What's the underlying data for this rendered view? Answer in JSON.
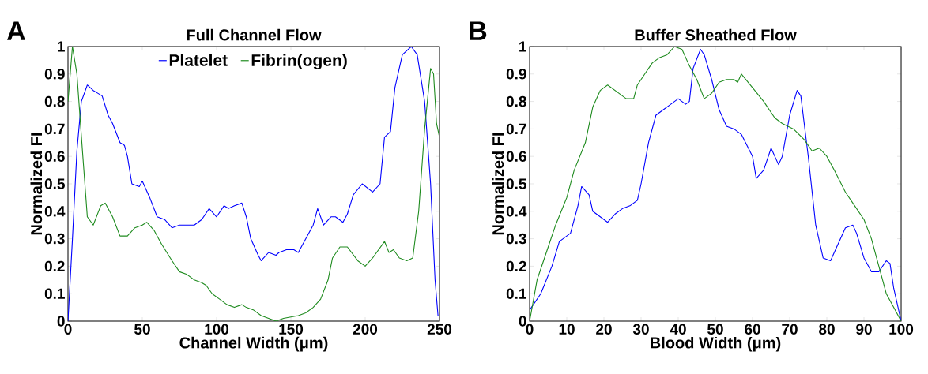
{
  "chart_data": [
    {
      "type": "line",
      "title": "Full Channel Flow",
      "xlabel": "Channel Width (μm)",
      "ylabel": "Normalized FI",
      "annotations": [
        "A"
      ],
      "xlim": [
        0,
        250
      ],
      "ylim": [
        0,
        1
      ],
      "xticks": [
        0,
        50,
        100,
        150,
        200,
        250
      ],
      "yticks": [
        0,
        0.1,
        0.2,
        0.3,
        0.4,
        0.5,
        0.6,
        0.7,
        0.8,
        0.9,
        1
      ],
      "legend": "top",
      "series": [
        {
          "name": "Platelet",
          "color": "#0000ff",
          "x": [
            0,
            3,
            6,
            9,
            13,
            17,
            20,
            23,
            27,
            30,
            35,
            38,
            40,
            43,
            48,
            50,
            55,
            60,
            65,
            70,
            75,
            80,
            85,
            90,
            95,
            100,
            105,
            108,
            112,
            117,
            120,
            123,
            128,
            130,
            135,
            140,
            142,
            147,
            152,
            155,
            157,
            162,
            165,
            168,
            172,
            177,
            180,
            185,
            188,
            192,
            198,
            205,
            210,
            213,
            217,
            220,
            225,
            231,
            235,
            240,
            244,
            247,
            249
          ],
          "values": [
            0,
            0.3,
            0.62,
            0.8,
            0.86,
            0.84,
            0.83,
            0.82,
            0.75,
            0.72,
            0.65,
            0.64,
            0.6,
            0.5,
            0.49,
            0.51,
            0.45,
            0.38,
            0.37,
            0.34,
            0.35,
            0.35,
            0.35,
            0.37,
            0.41,
            0.38,
            0.42,
            0.41,
            0.42,
            0.43,
            0.38,
            0.3,
            0.24,
            0.22,
            0.25,
            0.24,
            0.25,
            0.26,
            0.26,
            0.25,
            0.27,
            0.32,
            0.35,
            0.41,
            0.35,
            0.38,
            0.38,
            0.36,
            0.39,
            0.46,
            0.5,
            0.47,
            0.5,
            0.67,
            0.69,
            0.85,
            0.97,
            1.0,
            0.97,
            0.8,
            0.5,
            0.15,
            0.02
          ]
        },
        {
          "name": "Fibrin(ogen)",
          "color": "#1f8b1f",
          "x": [
            0,
            3,
            6,
            10,
            13,
            17,
            22,
            25,
            30,
            35,
            40,
            45,
            50,
            53,
            58,
            63,
            70,
            75,
            80,
            85,
            90,
            93,
            97,
            102,
            107,
            112,
            117,
            120,
            125,
            130,
            135,
            140,
            145,
            155,
            160,
            165,
            170,
            175,
            178,
            183,
            188,
            195,
            200,
            205,
            213,
            216,
            219,
            223,
            228,
            232,
            236,
            240,
            244,
            246,
            248,
            250
          ],
          "values": [
            0.8,
            1.0,
            0.9,
            0.6,
            0.38,
            0.35,
            0.42,
            0.43,
            0.38,
            0.31,
            0.31,
            0.34,
            0.35,
            0.36,
            0.33,
            0.28,
            0.22,
            0.18,
            0.17,
            0.15,
            0.14,
            0.13,
            0.1,
            0.08,
            0.06,
            0.05,
            0.06,
            0.05,
            0.04,
            0.02,
            0.01,
            0,
            0.01,
            0.02,
            0.03,
            0.05,
            0.08,
            0.15,
            0.23,
            0.27,
            0.27,
            0.22,
            0.2,
            0.23,
            0.29,
            0.25,
            0.26,
            0.23,
            0.22,
            0.23,
            0.4,
            0.7,
            0.92,
            0.9,
            0.72,
            0.67
          ]
        }
      ]
    },
    {
      "type": "line",
      "title": "Buffer Sheathed Flow",
      "xlabel": "Blood Width (μm)",
      "ylabel": "Normalized FI",
      "annotations": [
        "B"
      ],
      "xlim": [
        0,
        100
      ],
      "ylim": [
        0,
        1
      ],
      "xticks": [
        0,
        10,
        20,
        30,
        40,
        50,
        60,
        70,
        80,
        90,
        100
      ],
      "yticks": [
        0,
        0.1,
        0.2,
        0.3,
        0.4,
        0.5,
        0.6,
        0.7,
        0.8,
        0.9,
        1
      ],
      "series": [
        {
          "color": "#0000ff",
          "x": [
            0,
            3,
            6,
            8,
            11,
            13,
            14,
            16,
            17,
            19,
            21,
            23,
            25,
            27,
            29,
            30,
            32,
            34,
            36,
            38,
            40,
            42,
            43,
            44,
            46,
            47,
            49,
            51,
            53,
            55,
            57,
            60,
            61,
            63,
            65,
            67,
            68,
            70,
            72,
            73,
            75,
            77,
            79,
            81,
            82,
            85,
            87,
            88,
            90,
            92,
            94,
            96,
            97,
            98,
            100
          ],
          "values": [
            0.04,
            0.1,
            0.2,
            0.29,
            0.32,
            0.42,
            0.49,
            0.46,
            0.4,
            0.38,
            0.36,
            0.39,
            0.41,
            0.42,
            0.44,
            0.5,
            0.65,
            0.75,
            0.77,
            0.79,
            0.81,
            0.79,
            0.8,
            0.92,
            0.99,
            0.97,
            0.88,
            0.77,
            0.71,
            0.7,
            0.68,
            0.6,
            0.52,
            0.55,
            0.63,
            0.57,
            0.6,
            0.75,
            0.84,
            0.82,
            0.6,
            0.35,
            0.23,
            0.22,
            0.25,
            0.34,
            0.35,
            0.32,
            0.23,
            0.18,
            0.18,
            0.22,
            0.21,
            0.12,
            0
          ]
        },
        {
          "color": "#1f8b1f",
          "x": [
            0,
            2,
            5,
            7,
            10,
            12,
            15,
            17,
            19,
            21,
            24,
            26,
            28,
            29,
            31,
            33,
            35,
            37,
            39,
            41,
            43,
            45,
            47,
            49,
            51,
            53,
            55,
            56,
            57,
            60,
            63,
            66,
            68,
            71,
            74,
            76,
            78,
            80,
            82,
            85,
            87,
            90,
            92,
            94,
            96,
            98,
            100
          ],
          "values": [
            0,
            0.15,
            0.27,
            0.35,
            0.45,
            0.55,
            0.65,
            0.78,
            0.84,
            0.86,
            0.83,
            0.81,
            0.81,
            0.86,
            0.9,
            0.94,
            0.96,
            0.97,
            1.0,
            0.99,
            0.93,
            0.88,
            0.81,
            0.83,
            0.87,
            0.88,
            0.88,
            0.87,
            0.9,
            0.85,
            0.8,
            0.74,
            0.72,
            0.7,
            0.66,
            0.62,
            0.63,
            0.6,
            0.55,
            0.47,
            0.43,
            0.37,
            0.3,
            0.2,
            0.1,
            0.05,
            0
          ]
        }
      ]
    }
  ]
}
